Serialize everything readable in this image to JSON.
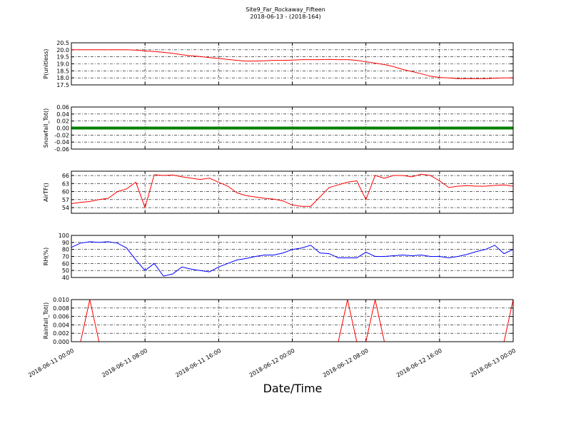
{
  "title": "Site9_Far_Rockaway_Fifteen",
  "subtitle": "2018-06-13 - (2018-164)",
  "x_label": "Date/Time",
  "xlim": [
    "2018-06-11 00:00",
    "2018-06-13 00:00"
  ],
  "xticks": [
    "2018-06-11 00:00",
    "2018-06-11 08:00",
    "2018-06-11 16:00",
    "2018-06-12 00:00",
    "2018-06-12 08:00",
    "2018-06-12 16:00",
    "2018-06-13 00:00"
  ],
  "x": [
    "2018-06-11 00:00",
    "2018-06-11 01:00",
    "2018-06-11 02:00",
    "2018-06-11 03:00",
    "2018-06-11 04:00",
    "2018-06-11 05:00",
    "2018-06-11 06:00",
    "2018-06-11 07:00",
    "2018-06-11 08:00",
    "2018-06-11 09:00",
    "2018-06-11 10:00",
    "2018-06-11 11:00",
    "2018-06-11 12:00",
    "2018-06-11 13:00",
    "2018-06-11 14:00",
    "2018-06-11 15:00",
    "2018-06-11 16:00",
    "2018-06-11 17:00",
    "2018-06-11 18:00",
    "2018-06-11 19:00",
    "2018-06-11 20:00",
    "2018-06-11 21:00",
    "2018-06-11 22:00",
    "2018-06-11 23:00",
    "2018-06-12 00:00",
    "2018-06-12 01:00",
    "2018-06-12 02:00",
    "2018-06-12 03:00",
    "2018-06-12 04:00",
    "2018-06-12 05:00",
    "2018-06-12 06:00",
    "2018-06-12 07:00",
    "2018-06-12 08:00",
    "2018-06-12 09:00",
    "2018-06-12 10:00",
    "2018-06-12 11:00",
    "2018-06-12 12:00",
    "2018-06-12 13:00",
    "2018-06-12 14:00",
    "2018-06-12 15:00",
    "2018-06-12 16:00",
    "2018-06-12 17:00",
    "2018-06-12 18:00",
    "2018-06-12 19:00",
    "2018-06-12 20:00",
    "2018-06-12 21:00",
    "2018-06-12 22:00",
    "2018-06-12 23:00",
    "2018-06-13 00:00"
  ],
  "chart_data": [
    {
      "type": "line",
      "y_label": "P(unitless)",
      "ylim": [
        17.5,
        20.5
      ],
      "grid": true,
      "yticks": [
        17.5,
        {
          "value": 18,
          "label": "18.0"
        },
        18.5,
        {
          "value": 19,
          "label": "19.0"
        },
        19.5,
        {
          "value": 20,
          "label": "20.0"
        },
        20.5
      ],
      "series": [
        {
          "color": "#ff0000",
          "width": 1,
          "values": [
            20.0,
            20.0,
            20.0,
            20.0,
            20.0,
            20.0,
            20.0,
            19.98,
            19.92,
            19.88,
            19.82,
            19.75,
            19.65,
            19.58,
            19.52,
            19.45,
            19.38,
            19.32,
            19.25,
            19.2,
            19.2,
            19.22,
            19.25,
            19.25,
            19.27,
            19.3,
            19.3,
            19.3,
            19.32,
            19.3,
            19.3,
            19.25,
            19.15,
            19.05,
            18.95,
            18.8,
            18.6,
            18.45,
            18.3,
            18.12,
            18.03,
            18.0,
            17.95,
            17.95,
            17.95,
            17.95,
            17.98,
            18.0,
            18.0
          ]
        }
      ]
    },
    {
      "type": "line",
      "y_label": "Snowfall_Tot()",
      "ylim": [
        -0.06,
        0.06
      ],
      "grid": true,
      "yticks": [
        -0.06,
        -0.04,
        -0.02,
        {
          "value": 0,
          "label": "0.00"
        },
        0.02,
        0.04,
        0.06
      ],
      "series": [
        {
          "color": "#007f00",
          "width": 4,
          "values": [
            0,
            0,
            0,
            0,
            0,
            0,
            0,
            0,
            0,
            0,
            0,
            0,
            0,
            0,
            0,
            0,
            0,
            0,
            0,
            0,
            0,
            0,
            0,
            0,
            0,
            0,
            0,
            0,
            0,
            0,
            0,
            0,
            0,
            0,
            0,
            0,
            0,
            0,
            0,
            0,
            0,
            0,
            0,
            0,
            0,
            0,
            0,
            0,
            0
          ]
        }
      ]
    },
    {
      "type": "line",
      "y_label": "AirTF()",
      "ylim": [
        51.9,
        67.6
      ],
      "grid": true,
      "yticks": [
        54,
        57,
        60,
        63,
        66
      ],
      "series": [
        {
          "color": "#ff0000",
          "width": 1,
          "values": [
            55.5,
            56,
            56.3,
            57,
            57.5,
            60,
            61,
            63.5,
            54,
            66.3,
            66,
            66.2,
            65.5,
            65,
            64.5,
            65,
            63.5,
            62,
            59.5,
            58.5,
            58,
            57.5,
            57.2,
            56.5,
            55,
            54.5,
            54.5,
            58,
            61.5,
            62.5,
            63.5,
            64,
            57,
            66,
            65,
            66,
            66,
            65.5,
            66.5,
            66,
            64,
            61.5,
            62,
            62.2,
            62,
            62,
            62.3,
            62.5,
            62
          ]
        }
      ]
    },
    {
      "type": "line",
      "y_label": "RH(%)",
      "ylim": [
        40,
        100
      ],
      "grid": true,
      "yticks": [
        40,
        50,
        60,
        70,
        80,
        90,
        100
      ],
      "series": [
        {
          "color": "#0000ff",
          "width": 1,
          "values": [
            83,
            89,
            91,
            90,
            91,
            89,
            82,
            65,
            50,
            60,
            42,
            45,
            55,
            52,
            50,
            48,
            55,
            60,
            65,
            67,
            70,
            72,
            72,
            75,
            80,
            82,
            86,
            75,
            74,
            68,
            68,
            68,
            76,
            70,
            70,
            71,
            72,
            71,
            72,
            70,
            70,
            68,
            70,
            73,
            77,
            80,
            86,
            74,
            80
          ]
        }
      ]
    },
    {
      "type": "line",
      "y_label": "Rainfall_Tot()",
      "ylim": [
        0,
        0.01
      ],
      "grid": true,
      "yticks": [
        {
          "value": 0,
          "label": "0.000"
        },
        {
          "value": 0.002,
          "label": "0.002"
        },
        {
          "value": 0.004,
          "label": "0.004"
        },
        {
          "value": 0.006,
          "label": "0.006"
        },
        {
          "value": 0.008,
          "label": "0.008"
        },
        {
          "value": 0.01,
          "label": "0.010"
        }
      ],
      "series": [
        {
          "color": "#ff0000",
          "width": 1,
          "values": [
            0,
            0,
            0.01,
            0,
            0,
            0,
            0,
            0,
            0,
            0,
            0,
            0,
            0,
            0,
            0,
            0,
            0,
            0,
            0,
            0,
            0,
            0,
            0,
            0,
            0,
            0,
            0,
            0,
            0,
            0,
            0.01,
            0,
            0,
            0.01,
            0,
            0,
            0,
            0,
            0,
            0,
            0,
            0,
            0,
            0,
            0,
            0,
            0,
            0,
            0.01
          ]
        }
      ]
    }
  ]
}
